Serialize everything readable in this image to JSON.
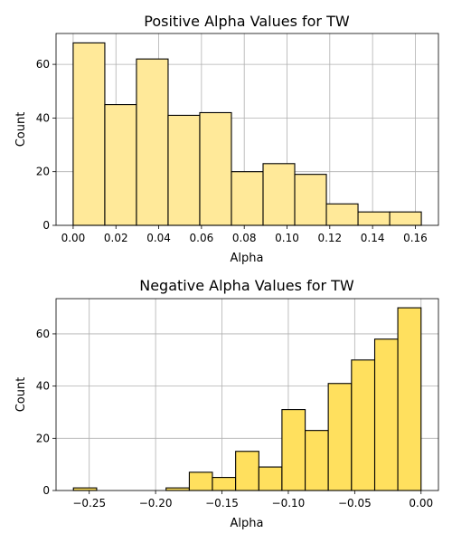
{
  "chart_data": [
    {
      "type": "bar",
      "title": "Positive Alpha Values for TW",
      "xlabel": "Alpha",
      "ylabel": "Count",
      "bin_edges": [
        0.0,
        0.0148,
        0.0296,
        0.0444,
        0.0592,
        0.074,
        0.0888,
        0.1036,
        0.1184,
        0.1332,
        0.148,
        0.1628
      ],
      "values": [
        68,
        45,
        62,
        41,
        42,
        20,
        23,
        19,
        8,
        5,
        5
      ],
      "xlim": [
        -0.008,
        0.1708
      ],
      "ylim": [
        0,
        71.5
      ],
      "xticks": [
        0.0,
        0.02,
        0.04,
        0.06,
        0.08,
        0.1,
        0.12,
        0.14,
        0.16
      ],
      "xtick_labels": [
        "0.00",
        "0.02",
        "0.04",
        "0.06",
        "0.08",
        "0.10",
        "0.12",
        "0.14",
        "0.16"
      ],
      "yticks": [
        0,
        20,
        40,
        60
      ],
      "ytick_labels": [
        "0",
        "20",
        "40",
        "60"
      ],
      "grid": true,
      "color": "#FFE999"
    },
    {
      "type": "bar",
      "title": "Negative Alpha Values for TW",
      "xlabel": "Alpha",
      "ylabel": "Count",
      "bin_edges": [
        -0.2619,
        -0.2444,
        -0.227,
        -0.2095,
        -0.1921,
        -0.1746,
        -0.1572,
        -0.1397,
        -0.1222,
        -0.1048,
        -0.0873,
        -0.0699,
        -0.0524,
        -0.0349,
        -0.0175,
        0.0
      ],
      "values": [
        1,
        0,
        0,
        0,
        1,
        7,
        5,
        15,
        9,
        31,
        23,
        41,
        50,
        58,
        70
      ],
      "xlim": [
        -0.275,
        0.0131
      ],
      "ylim": [
        0,
        73.5
      ],
      "xticks": [
        -0.25,
        -0.2,
        -0.15,
        -0.1,
        -0.05,
        0.0
      ],
      "xtick_labels": [
        "−0.25",
        "−0.20",
        "−0.15",
        "−0.10",
        "−0.05",
        "0.00"
      ],
      "yticks": [
        0,
        20,
        40,
        60
      ],
      "ytick_labels": [
        "0",
        "20",
        "40",
        "60"
      ],
      "grid": true,
      "color": "#FFE05E"
    }
  ]
}
